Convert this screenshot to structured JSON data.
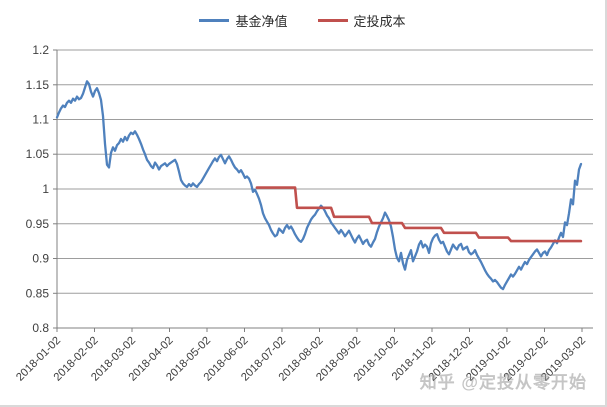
{
  "watermark": "知乎 @定投从零开始",
  "chart_data": {
    "type": "line",
    "title": "",
    "xlabel": "",
    "ylabel": "",
    "grid": "horizontal",
    "x_axis": {
      "tick_labels": [
        "2018-01-02",
        "2018-02-02",
        "2018-03-02",
        "2018-04-02",
        "2018-05-02",
        "2018-06-02",
        "2018-07-02",
        "2018-08-02",
        "2018-09-02",
        "2018-10-02",
        "2018-11-02",
        "2018-12-02",
        "2019-01-02",
        "2019-02-02",
        "2019-03-02"
      ],
      "label_rotation": -45,
      "unit": "months_since_2018-01-02"
    },
    "y_axis": {
      "min": 0.8,
      "max": 1.2,
      "ticks": [
        0.8,
        0.85,
        0.9,
        0.95,
        1,
        1.05,
        1.1,
        1.15,
        1.2
      ],
      "tick_labels": [
        "0.8",
        "0.85",
        "0.9",
        "0.95",
        "1",
        "1.05",
        "1.1",
        "1.15",
        "1.2"
      ]
    },
    "legend": {
      "position": "top-center",
      "entries": [
        {
          "name": "基金净值",
          "color": "#4F81BD"
        },
        {
          "name": "定投成本",
          "color": "#C0504D"
        }
      ]
    },
    "series": [
      {
        "name": "基金净值",
        "color": "#4F81BD",
        "sampling": "uniform",
        "x_start": 0,
        "x_step": 0.05333,
        "values": [
          1.103,
          1.11,
          1.116,
          1.12,
          1.118,
          1.124,
          1.127,
          1.124,
          1.13,
          1.127,
          1.133,
          1.129,
          1.131,
          1.137,
          1.146,
          1.155,
          1.151,
          1.14,
          1.133,
          1.141,
          1.145,
          1.138,
          1.128,
          1.105,
          1.065,
          1.035,
          1.031,
          1.052,
          1.06,
          1.055,
          1.063,
          1.066,
          1.072,
          1.068,
          1.075,
          1.07,
          1.077,
          1.081,
          1.079,
          1.083,
          1.078,
          1.072,
          1.065,
          1.057,
          1.05,
          1.042,
          1.038,
          1.033,
          1.03,
          1.038,
          1.034,
          1.028,
          1.033,
          1.035,
          1.037,
          1.033,
          1.036,
          1.038,
          1.04,
          1.042,
          1.036,
          1.025,
          1.013,
          1.008,
          1.005,
          1.003,
          1.007,
          1.004,
          1.008,
          1.005,
          1.003,
          1.007,
          1.01,
          1.015,
          1.02,
          1.025,
          1.03,
          1.035,
          1.04,
          1.044,
          1.04,
          1.046,
          1.049,
          1.043,
          1.037,
          1.043,
          1.047,
          1.042,
          1.036,
          1.031,
          1.028,
          1.024,
          1.027,
          1.022,
          1.016,
          1.018,
          1.015,
          1.008,
          0.996,
          0.999,
          0.993,
          0.986,
          0.977,
          0.965,
          0.958,
          0.953,
          0.948,
          0.941,
          0.936,
          0.932,
          0.934,
          0.943,
          0.94,
          0.937,
          0.944,
          0.948,
          0.943,
          0.946,
          0.941,
          0.935,
          0.93,
          0.926,
          0.924,
          0.928,
          0.935,
          0.944,
          0.95,
          0.956,
          0.96,
          0.963,
          0.968,
          0.972,
          0.976,
          0.973,
          0.968,
          0.962,
          0.958,
          0.952,
          0.948,
          0.944,
          0.94,
          0.936,
          0.941,
          0.937,
          0.932,
          0.936,
          0.94,
          0.934,
          0.928,
          0.923,
          0.929,
          0.933,
          0.927,
          0.921,
          0.925,
          0.927,
          0.92,
          0.917,
          0.923,
          0.928,
          0.938,
          0.946,
          0.952,
          0.958,
          0.966,
          0.961,
          0.955,
          0.946,
          0.931,
          0.913,
          0.901,
          0.896,
          0.908,
          0.893,
          0.884,
          0.898,
          0.905,
          0.912,
          0.896,
          0.903,
          0.91,
          0.92,
          0.925,
          0.916,
          0.92,
          0.917,
          0.908,
          0.922,
          0.929,
          0.933,
          0.935,
          0.927,
          0.922,
          0.924,
          0.917,
          0.91,
          0.906,
          0.913,
          0.92,
          0.916,
          0.913,
          0.919,
          0.921,
          0.913,
          0.915,
          0.917,
          0.909,
          0.906,
          0.908,
          0.912,
          0.905,
          0.9,
          0.895,
          0.889,
          0.883,
          0.878,
          0.874,
          0.871,
          0.867,
          0.869,
          0.866,
          0.862,
          0.858,
          0.856,
          0.862,
          0.867,
          0.872,
          0.877,
          0.874,
          0.878,
          0.883,
          0.888,
          0.884,
          0.89,
          0.895,
          0.892,
          0.898,
          0.902,
          0.906,
          0.91,
          0.913,
          0.908,
          0.903,
          0.908,
          0.91,
          0.905,
          0.912,
          0.916,
          0.921,
          0.926,
          0.922,
          0.93,
          0.937,
          0.931,
          0.952,
          0.948,
          0.965,
          0.985,
          0.978,
          1.012,
          1.006,
          1.028,
          1.036
        ]
      },
      {
        "name": "定投成本",
        "color": "#C0504D",
        "sampling": "points",
        "points": [
          [
            5.33,
            1.002
          ],
          [
            6.35,
            1.002
          ],
          [
            6.4,
            0.973
          ],
          [
            7.31,
            0.973
          ],
          [
            7.39,
            0.96
          ],
          [
            8.32,
            0.96
          ],
          [
            8.4,
            0.951
          ],
          [
            9.2,
            0.951
          ],
          [
            9.28,
            0.944
          ],
          [
            10.24,
            0.944
          ],
          [
            10.32,
            0.937
          ],
          [
            11.17,
            0.937
          ],
          [
            11.25,
            0.93
          ],
          [
            12.03,
            0.93
          ],
          [
            12.11,
            0.925
          ],
          [
            13.97,
            0.925
          ]
        ]
      }
    ]
  },
  "style_colors": {
    "gridline": "#9d9d9d",
    "axis": "#808080",
    "tick_text": "#3f3f3f"
  }
}
